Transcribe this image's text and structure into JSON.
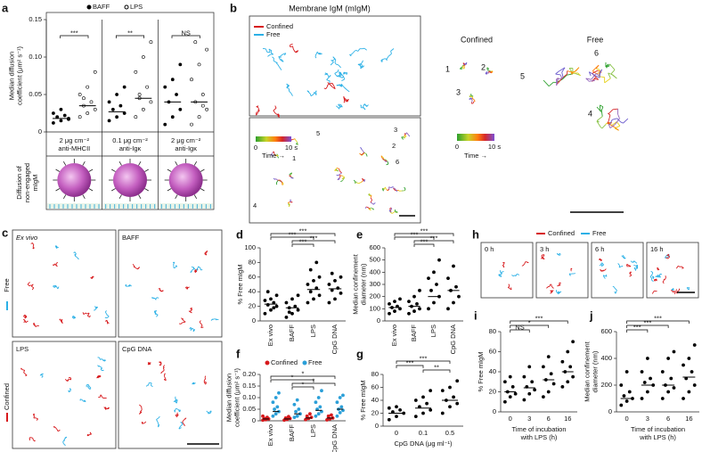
{
  "panel_labels": [
    "a",
    "b",
    "c",
    "d",
    "e",
    "f",
    "g",
    "h",
    "i",
    "j"
  ],
  "chart_data": [
    {
      "type": "strip",
      "legend": true,
      "ylabel": [
        "Median diffusion",
        "coefficient (μm² s⁻¹)"
      ],
      "ylim": [
        0,
        0.15
      ],
      "yticks": [
        0,
        0.05,
        {
          "value": 0.1,
          "label": "0.10"
        },
        0.15
      ],
      "categories": [
        [
          "2 μg cm⁻²",
          "anti-MHCII"
        ],
        [
          "0.1 μg cm⁻²",
          "anti-Igκ"
        ],
        [
          "2 μg cm⁻²",
          "anti-Igκ"
        ]
      ],
      "series": [
        {
          "name": "BAFF",
          "color": "#000000",
          "marker": "filled",
          "values": [
            [
              0.012,
              0.015,
              0.018,
              0.02,
              0.022,
              0.025,
              0.03,
              0.017
            ],
            [
              0.015,
              0.02,
              0.025,
              0.03,
              0.035,
              0.04,
              0.05,
              0.06
            ],
            [
              0.01,
              0.02,
              0.03,
              0.04,
              0.05,
              0.06,
              0.07,
              0.09
            ]
          ],
          "medians": [
            0.018,
            0.027,
            0.04
          ]
        },
        {
          "name": "LPS",
          "color": "#000000",
          "marker": "open",
          "values": [
            [
              0.02,
              0.025,
              0.03,
              0.035,
              0.04,
              0.05,
              0.06,
              0.08,
              0.045
            ],
            [
              0.02,
              0.03,
              0.04,
              0.05,
              0.06,
              0.08,
              0.1,
              0.12,
              0.045
            ],
            [
              0.01,
              0.02,
              0.03,
              0.04,
              0.05,
              0.07,
              0.09,
              0.11,
              0.12,
              0.035
            ]
          ],
          "medians": [
            0.035,
            0.045,
            0.04
          ]
        }
      ],
      "brackets": [
        {
          "category": 0,
          "label": "***"
        },
        {
          "category": 1,
          "label": "**"
        },
        {
          "category": 2,
          "label": "NS"
        }
      ]
    },
    {
      "type": "strip",
      "ylabel": "% Free mIgM",
      "ylim": [
        0,
        100
      ],
      "yticks": [
        0,
        20,
        40,
        60,
        80,
        100
      ],
      "xrotate": true,
      "categories": [
        "Ex vivo",
        "BAFF",
        "LPS",
        "CpG DNA"
      ],
      "color": "#000000",
      "values": [
        [
          10,
          15,
          20,
          22,
          25,
          28,
          30,
          35,
          40,
          18
        ],
        [
          5,
          10,
          15,
          18,
          20,
          25,
          30,
          35,
          12
        ],
        [
          25,
          30,
          35,
          40,
          45,
          50,
          55,
          60,
          70,
          80
        ],
        [
          25,
          30,
          38,
          42,
          45,
          50,
          55,
          60,
          65
        ]
      ],
      "medians": [
        23,
        18,
        43,
        44
      ],
      "brackets": [
        {
          "from": 0,
          "to": 3,
          "label": "***"
        },
        {
          "from": 0,
          "to": 2,
          "label": "***"
        },
        {
          "from": 1,
          "to": 3,
          "label": "***"
        },
        {
          "from": 1,
          "to": 2,
          "label": "***"
        }
      ]
    },
    {
      "type": "strip",
      "ylabel": [
        "Median confinement",
        "diameter (nm)"
      ],
      "ylim": [
        0,
        600
      ],
      "yticks": [
        0,
        100,
        200,
        300,
        400,
        500,
        600
      ],
      "xrotate": true,
      "categories": [
        "Ex vivo",
        "BAFF",
        "LPS",
        "CpG DNA"
      ],
      "color": "#000000",
      "values": [
        [
          60,
          80,
          100,
          110,
          120,
          140,
          160,
          180
        ],
        [
          60,
          80,
          100,
          120,
          140,
          160,
          200,
          250
        ],
        [
          100,
          150,
          200,
          250,
          300,
          350,
          400,
          500
        ],
        [
          100,
          150,
          200,
          250,
          280,
          350,
          450
        ]
      ],
      "medians": [
        110,
        120,
        200,
        250
      ],
      "brackets": [
        {
          "from": 0,
          "to": 3,
          "label": "***"
        },
        {
          "from": 0,
          "to": 2,
          "label": "***"
        },
        {
          "from": 1,
          "to": 3,
          "label": "***"
        },
        {
          "from": 1,
          "to": 2,
          "label": "***"
        }
      ]
    },
    {
      "type": "strip",
      "legend": true,
      "ylabel": [
        "Median diffusion",
        "coefficient (μm² s⁻¹)"
      ],
      "ylim": [
        0,
        0.2
      ],
      "yticks": [
        0,
        0.05,
        {
          "value": 0.1,
          "label": "0.10"
        },
        0.15,
        {
          "value": 0.2,
          "label": "0.20"
        }
      ],
      "xrotate": true,
      "categories": [
        "Ex vivo",
        "BAFF",
        "LPS",
        "CpG DNA"
      ],
      "series": [
        {
          "name": "Confined",
          "color": "#d7191c",
          "marker": "filled",
          "values": [
            [
              0.003,
              0.005,
              0.008,
              0.01,
              0.015,
              0.02
            ],
            [
              0.003,
              0.006,
              0.01,
              0.012,
              0.018
            ],
            [
              0.005,
              0.01,
              0.015,
              0.02,
              0.03
            ],
            [
              0.004,
              0.008,
              0.012,
              0.02,
              0.025
            ]
          ],
          "medians": [
            0.008,
            0.008,
            0.012,
            0.012
          ]
        },
        {
          "name": "Free",
          "color": "#2b9fd8",
          "marker": "filled",
          "values": [
            [
              0.02,
              0.03,
              0.04,
              0.05,
              0.06,
              0.08,
              0.1,
              0.12
            ],
            [
              0.015,
              0.02,
              0.03,
              0.04,
              0.05,
              0.07,
              0.09
            ],
            [
              0.02,
              0.03,
              0.04,
              0.05,
              0.06,
              0.08,
              0.1,
              0.13
            ],
            [
              0.02,
              0.035,
              0.045,
              0.05,
              0.06,
              0.08,
              0.1,
              0.11
            ]
          ],
          "medians": [
            0.04,
            0.03,
            0.045,
            0.05
          ]
        }
      ],
      "brackets": [
        {
          "from": 0,
          "to": 3,
          "label": "*"
        },
        {
          "from": 0,
          "to": 2,
          "label": "*"
        },
        {
          "from": 1,
          "to": 3,
          "label": "*"
        },
        {
          "from": 1,
          "to": 2,
          "label": "*"
        }
      ]
    },
    {
      "type": "strip",
      "ylabel": "% Free mIgM",
      "ylim": [
        0,
        80
      ],
      "yticks": [
        0,
        20,
        40,
        60,
        80
      ],
      "categories": [
        "0",
        "0.1",
        "0.5"
      ],
      "xlabel": "CpG DNA (μg ml⁻¹)",
      "color": "#000000",
      "values": [
        [
          10,
          15,
          20,
          22,
          25,
          28,
          30
        ],
        [
          15,
          20,
          25,
          30,
          35,
          40,
          45,
          55
        ],
        [
          20,
          30,
          35,
          40,
          45,
          55,
          60,
          70
        ]
      ],
      "medians": [
        20,
        28,
        40
      ],
      "brackets": [
        {
          "from": 0,
          "to": 2,
          "label": "***"
        },
        {
          "from": 0,
          "to": 1,
          "label": "***"
        },
        {
          "from": 1,
          "to": 2,
          "label": "**"
        }
      ]
    },
    {
      "type": "strip",
      "ylabel": "% Free mIgM",
      "ylim": [
        0,
        80
      ],
      "yticks": [
        0,
        20,
        40,
        60,
        80
      ],
      "categories": [
        "0",
        "3",
        "6",
        "16"
      ],
      "xlabel": [
        "Time of incubation",
        "with LPS (h)"
      ],
      "color": "#000000",
      "values": [
        [
          10,
          15,
          18,
          20,
          25,
          30,
          35
        ],
        [
          12,
          18,
          22,
          25,
          30,
          35,
          45
        ],
        [
          15,
          20,
          28,
          32,
          38,
          45,
          55
        ],
        [
          25,
          30,
          35,
          40,
          45,
          50,
          60,
          70
        ]
      ],
      "medians": [
        20,
        24,
        32,
        40
      ],
      "brackets": [
        {
          "from": 0,
          "to": 3,
          "label": "***"
        },
        {
          "from": 0,
          "to": 2,
          "label": "*"
        },
        {
          "from": 0,
          "to": 1,
          "label": "NS"
        }
      ]
    },
    {
      "type": "strip",
      "ylabel": [
        "Median confinement",
        "diameter (nm)"
      ],
      "ylim": [
        0,
        600
      ],
      "yticks": [
        0,
        200,
        400,
        600
      ],
      "categories": [
        "0",
        "3",
        "6",
        "16"
      ],
      "xlabel": [
        "Time of incubation",
        "with LPS (h)"
      ],
      "color": "#000000",
      "values": [
        [
          50,
          80,
          100,
          120,
          150,
          200,
          300
        ],
        [
          100,
          150,
          200,
          220,
          250,
          300,
          400
        ],
        [
          100,
          150,
          180,
          200,
          250,
          300,
          400,
          450
        ],
        [
          100,
          150,
          200,
          250,
          300,
          350,
          400,
          500
        ]
      ],
      "medians": [
        100,
        200,
        200,
        260
      ],
      "brackets": [
        {
          "from": 0,
          "to": 3,
          "label": "***"
        },
        {
          "from": 0,
          "to": 2,
          "label": "***"
        },
        {
          "from": 0,
          "to": 1,
          "label": "***"
        }
      ]
    }
  ],
  "panel_a": {
    "diagram_label": [
      "Diffusion of",
      "non-engaged",
      "mIgM"
    ]
  },
  "panel_b": {
    "title": "Membrane IgM (mIgM)",
    "legend": [
      "Confined",
      "Free"
    ],
    "colors": [
      "#d7191c",
      "#2bb0e6"
    ],
    "scale": {
      "start": "0",
      "end": "10 s",
      "axis": "Time →"
    },
    "track_numbers": [
      "1",
      "2",
      "3",
      "4",
      "5",
      "6"
    ],
    "headings": [
      "Confined",
      "Free"
    ]
  },
  "panel_c": {
    "images": [
      "Ex vivo",
      "BAFF",
      "LPS",
      "CpG DNA"
    ],
    "side_labels": [
      "Free",
      "Confined"
    ]
  },
  "panel_h": {
    "images": [
      "0 h",
      "3 h",
      "6 h",
      "16 h"
    ],
    "legend": [
      "Confined",
      "Free"
    ]
  }
}
